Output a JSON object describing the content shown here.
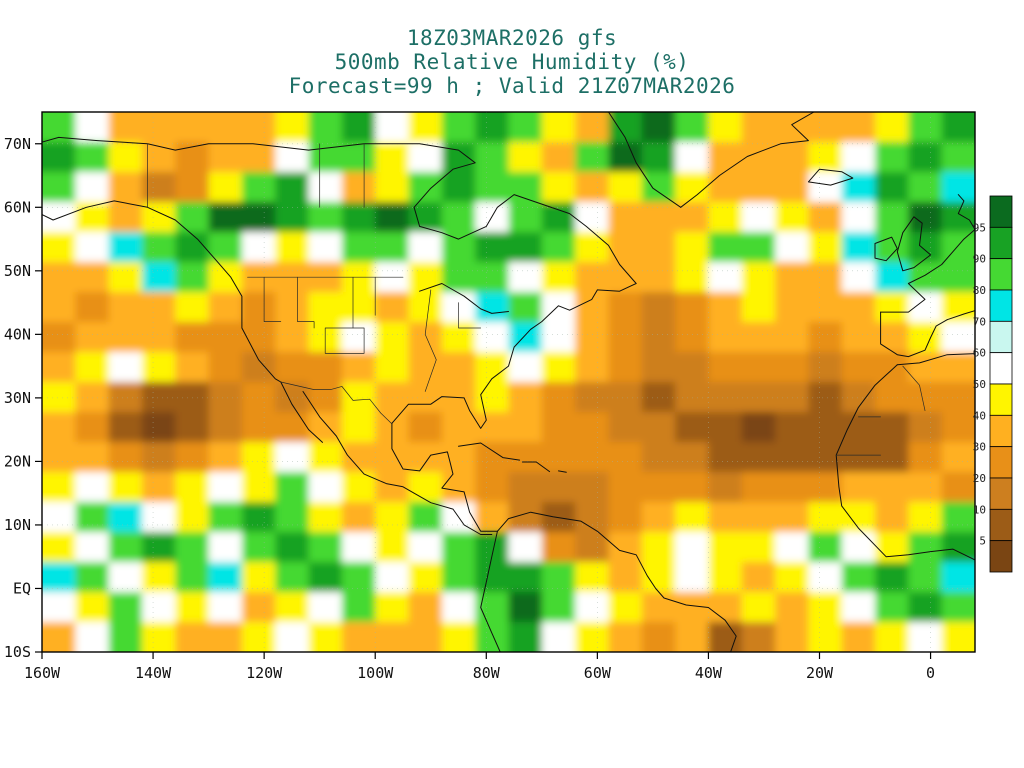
{
  "titles": {
    "line1": "18Z03MAR2026 gfs",
    "line2": "500mb Relative Humidity (%)",
    "line3": "Forecast=99 h ; Valid 21Z07MAR2026",
    "color": "#1d6f66"
  },
  "chart_data": {
    "type": "heatmap",
    "projection": "equirectangular",
    "field": "500mb Relative Humidity",
    "units": "%",
    "model": "gfs",
    "init_time": "18Z03MAR2026",
    "forecast_hour": "99",
    "valid_time": "21Z07MAR2026",
    "lon_range": [
      -160,
      8
    ],
    "lat_range": [
      -10,
      75
    ],
    "lat_ticks": [
      {
        "label": "70N",
        "lat": 70
      },
      {
        "label": "60N",
        "lat": 60
      },
      {
        "label": "50N",
        "lat": 50
      },
      {
        "label": "40N",
        "lat": 40
      },
      {
        "label": "30N",
        "lat": 30
      },
      {
        "label": "20N",
        "lat": 20
      },
      {
        "label": "10N",
        "lat": 10
      },
      {
        "label": "EQ",
        "lat": 0
      },
      {
        "label": "10S",
        "lat": -10
      }
    ],
    "lon_ticks": [
      {
        "label": "160W",
        "lon": -160
      },
      {
        "label": "140W",
        "lon": -140
      },
      {
        "label": "120W",
        "lon": -120
      },
      {
        "label": "100W",
        "lon": -100
      },
      {
        "label": "80W",
        "lon": -80
      },
      {
        "label": "60W",
        "lon": -60
      },
      {
        "label": "40W",
        "lon": -40
      },
      {
        "label": "20W",
        "lon": -20
      },
      {
        "label": "0",
        "lon": 0
      }
    ],
    "levels": [
      5,
      10,
      20,
      30,
      40,
      50,
      60,
      70,
      80,
      90,
      95
    ],
    "colorbar": {
      "labels": [
        "95",
        "90",
        "80",
        "70",
        "60",
        "50",
        "40",
        "30",
        "20",
        "10",
        "5"
      ],
      "colors": [
        "#0b6b1f",
        "#18a224",
        "#45d933",
        "#00e5e5",
        "#c9f7ef",
        "#ffffff",
        "#fff500",
        "#ffb020",
        "#e89018",
        "#cd7f1f",
        "#9c5c17",
        "#7a4513"
      ]
    },
    "grid": {
      "cols": 28,
      "rows": 18,
      "comment": "approximate RH(%) values, row 0 = ~72N ... row 17 = ~8S, col 0 = ~158W ... col 27 = ~3W",
      "values_rows": [
        "85 55 35 30 30 35 30 45 85 92 55 45 85 92 85 45 35 92 97 85 45 35 30 30 35 45 85 92",
        "92 85 45 30 25 30 35 55 85 85 45 55 92 85 45 35 85 97 92 55 35 30 35 45 55 85 92 85",
        "85 55 30 15 25 45 85 92 55 35 45 85 92 85 85 45 35 45 85 45 35 30 35 55 75 92 85 75",
        "55 45 35 45 85 97 97 92 85 92 97 92 85 55 85 92 55 35 30 35 45 55 45 35 55 85 97 92",
        "45 55 75 85 92 85 55 45 55 85 85 55 85 92 92 85 45 35 35 45 85 85 55 45 75 85 92 85",
        "35 30 45 75 85 45 35 30 35 45 55 45 85 85 55 45 35 30 35 45 55 45 35 35 55 75 85 85",
        "30 25 30 35 45 35 25 30 45 45 35 45 55 75 85 55 35 25 15 25 35 45 35 30 35 45 55 45",
        "25 30 35 30 25 20 25 35 45 55 45 35 45 55 75 55 35 20 15 20 30 35 30 25 30 35 45 55",
        "35 45 55 45 35 25 15 20 25 35 45 35 35 45 55 45 30 20 15 15 20 25 20 15 20 25 30 35",
        "45 35 15 8 8 15 20 15 25 45 35 30 35 45 35 25 15 10 8 10 15 15 10 8 15 20 25 20",
        "35 25 8 4 8 15 20 25 35 45 35 25 30 35 30 25 20 15 10 8 6 4 6 5 6 8 15 20",
        "30 35 20 15 20 30 45 55 45 35 30 35 30 25 25 20 25 25 15 10 8 6 8 8 6 8 25 30",
        "45 55 45 35 45 55 45 85 55 45 35 45 35 25 15 10 15 25 25 20 15 20 25 25 30 35 30 25",
        "55 85 75 55 45 85 92 85 45 35 45 85 55 35 15 8 10 25 35 45 35 30 35 45 45 35 45 85",
        "45 55 85 92 85 55 85 92 85 55 45 55 85 92 55 25 15 30 45 55 45 45 55 85 55 45 85 92",
        "75 85 55 45 85 75 45 85 92 85 55 45 85 92 92 85 45 35 45 55 45 35 45 55 85 92 85 75",
        "55 45 85 55 45 55 35 45 55 85 45 35 55 85 97 85 55 45 35 30 35 45 35 45 55 85 92 85",
        "35 55 85 45 35 30 45 55 45 35 30 35 45 85 92 55 45 35 25 30 8 15 35 45 35 45 55 45"
      ]
    }
  }
}
